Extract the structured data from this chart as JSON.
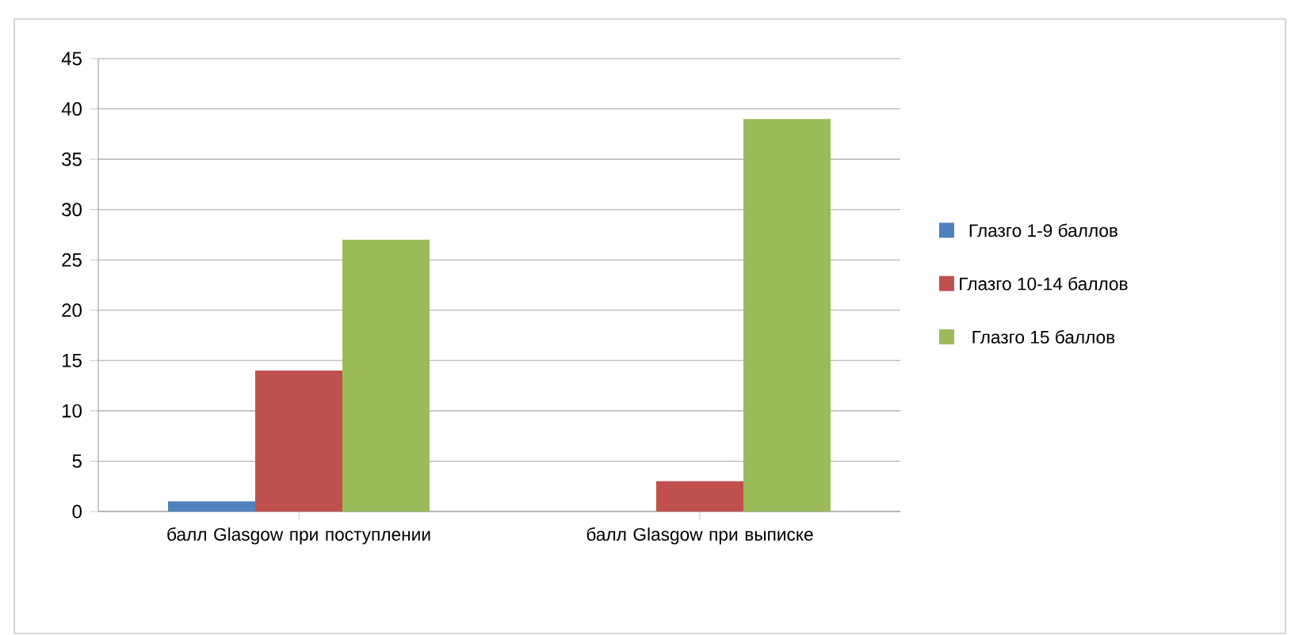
{
  "chart_data": {
    "type": "bar",
    "categories": [
      "балл Glasgow  при поступлении",
      "балл Glasgow  при выписке"
    ],
    "series": [
      {
        "name": "Глазго 1-9 баллов",
        "color": "#4f81bd",
        "values": [
          1,
          0
        ]
      },
      {
        "name": "Глазго 10-14 баллов",
        "color": "#c0504d",
        "values": [
          14,
          3
        ]
      },
      {
        "name": "Глазго 15 баллов",
        "color": "#9bbb59",
        "values": [
          27,
          39
        ]
      }
    ],
    "ylim": [
      0,
      45
    ],
    "yticks": [
      0,
      5,
      10,
      15,
      20,
      25,
      30,
      35,
      40,
      45
    ],
    "grid": "y",
    "legend": "right"
  }
}
